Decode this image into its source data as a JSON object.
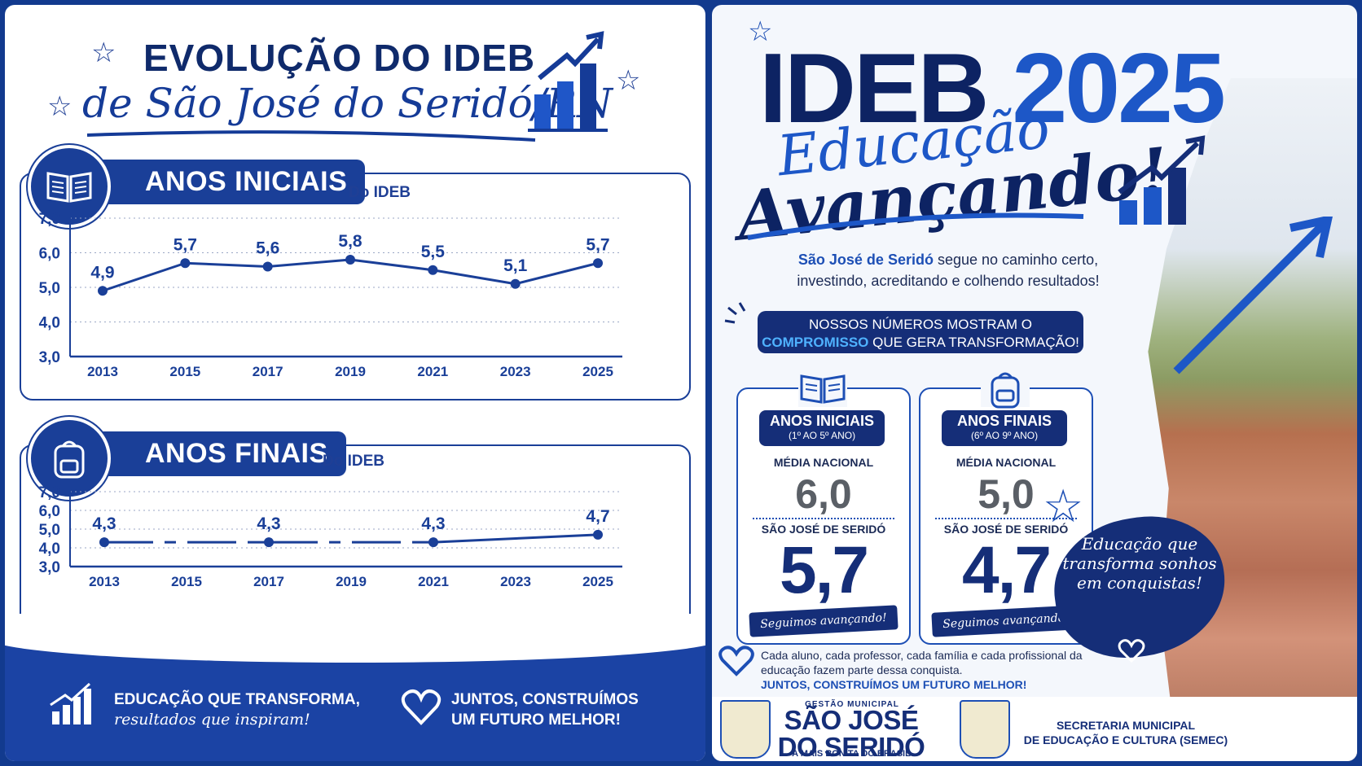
{
  "left": {
    "title_line1": "EVOLUÇÃO DO IDEB",
    "title_line2": "de São José do Seridó/RN",
    "anos_iniciais_title": "ANOS INICIAIS",
    "anos_finais_title": "ANOS FINAIS",
    "do_ideb": "Do IDEB",
    "footer_left_line1": "EDUCAÇÃO QUE TRANSFORMA,",
    "footer_left_line2": "resultados que inspiram!",
    "footer_right_line1": "JUNTOS, CONSTRUÍMOS",
    "footer_right_line2": "UM FUTURO MELHOR!"
  },
  "chart_data": [
    {
      "type": "line",
      "title": "ANOS INICIAIS",
      "subtitle": "Do IDEB",
      "x": [
        "2013",
        "2015",
        "2017",
        "2019",
        "2021",
        "2023",
        "2025"
      ],
      "y": [
        4.9,
        5.7,
        5.6,
        5.8,
        5.5,
        5.1,
        5.7
      ],
      "labels": [
        "4,9",
        "5,7",
        "5,6",
        "5,8",
        "5,5",
        "5,1",
        "5,7"
      ],
      "yticks": [
        "3,0",
        "4,0",
        "5,0",
        "6,0",
        "7,0"
      ],
      "ylim": [
        3.0,
        7.0
      ],
      "grid": true,
      "color": "#1a3f98"
    },
    {
      "type": "line",
      "title": "ANOS FINAIS",
      "subtitle": "Do IDEB",
      "x": [
        "2013",
        "2015",
        "2017",
        "2019",
        "2021",
        "2023",
        "2025"
      ],
      "y": [
        4.3,
        null,
        4.3,
        null,
        4.3,
        null,
        4.7
      ],
      "labels": [
        "4,3",
        "",
        "4,3",
        "",
        "4,3",
        "",
        "4,7"
      ],
      "yticks": [
        "3,0",
        "4,0",
        "5,0",
        "6,0",
        "7,0"
      ],
      "ylim": [
        3.0,
        7.0
      ],
      "grid": true,
      "color": "#1a3f98"
    }
  ],
  "right": {
    "title_ideb": "IDEB",
    "title_year": "2025",
    "script_line1": "Educação",
    "script_line2": "Avançando!",
    "intro_bold": "São José de Seridó",
    "intro_rest1": "segue no caminho certo,",
    "intro_rest2": "investindo, acreditando e colhendo resultados!",
    "banner_line1": "NOSSOS NÚMEROS MOSTRAM O",
    "banner_bold": "COMPROMISSO",
    "banner_line2_rest": "QUE GERA TRANSFORMAÇÃO!",
    "cards": [
      {
        "title": "ANOS INICIAIS",
        "sub": "(1º AO 5º ANO)",
        "national_label": "MÉDIA NACIONAL",
        "national_value": "6,0",
        "city_label": "SÃO JOSÉ DE SERIDÓ",
        "city_value": "5,7",
        "tagline": "Seguimos avançando!"
      },
      {
        "title": "ANOS FINAIS",
        "sub": "(6º AO 9º ANO)",
        "national_label": "MÉDIA NACIONAL",
        "national_value": "5,0",
        "city_label": "SÃO JOSÉ DE SERIDÓ",
        "city_value": "4,7",
        "tagline": "Seguimos avançando!"
      }
    ],
    "note_text": "Cada aluno, cada professor, cada família e cada profissional da educação fazem parte dessa conquista.",
    "note_bold": "JUNTOS, CONSTRUÍMOS UM FUTURO MELHOR!",
    "brush_text": "Educação que transforma sonhos em conquistas!",
    "logo_gestao": "GESTÃO MUNICIPAL",
    "logo_name_line1": "SÃO JOSÉ",
    "logo_name_line2": "DO SERIDÓ",
    "logo_tagline": "A MAIS BONITA DO BRASIL",
    "semec_line1": "SECRETARIA MUNICIPAL",
    "semec_line2": "DE EDUCAÇÃO E CULTURA (SEMEC)"
  }
}
